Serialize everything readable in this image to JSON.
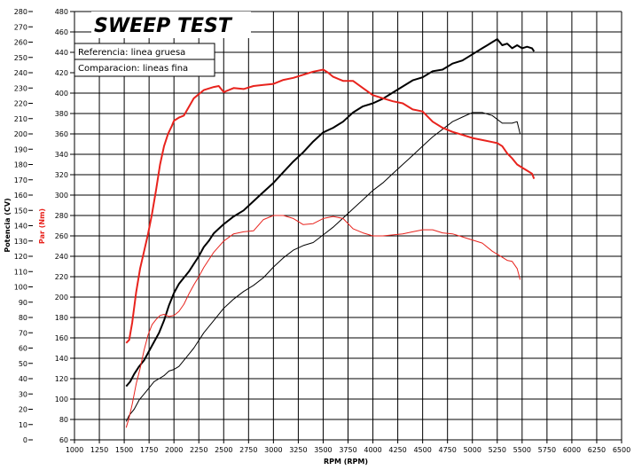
{
  "chart_data": {
    "type": "line",
    "title": "SWEEP TEST",
    "xlabel": "RPM (RPM)",
    "ylabel_left": "Potencia (CV)",
    "ylabel_right": "Par (Nm)",
    "xlim": [
      1000,
      6500
    ],
    "x_ticks": [
      1000,
      1250,
      1500,
      1750,
      2000,
      2250,
      2500,
      2750,
      3000,
      3250,
      3500,
      3750,
      4000,
      4250,
      4500,
      4750,
      5000,
      5250,
      5500,
      5750,
      6000,
      6250,
      6500
    ],
    "power_axis": {
      "ylim": [
        0,
        280
      ],
      "ticks": [
        0,
        10,
        20,
        30,
        40,
        50,
        60,
        70,
        80,
        90,
        100,
        110,
        120,
        130,
        140,
        150,
        160,
        170,
        180,
        190,
        200,
        210,
        220,
        230,
        240,
        250,
        260,
        270,
        280
      ]
    },
    "torque_axis": {
      "ylim": [
        60,
        480
      ],
      "ticks": [
        60,
        80,
        100,
        120,
        140,
        160,
        180,
        200,
        220,
        240,
        260,
        280,
        300,
        320,
        340,
        360,
        380,
        400,
        420,
        440,
        460,
        480
      ]
    },
    "legend": [
      "Referencia: linea gruesa",
      "Comparacion: lineas fina"
    ],
    "colors": {
      "power": "#000000",
      "torque": "#e8231d",
      "grid": "#000000"
    },
    "series": [
      {
        "name": "Potencia referencia",
        "axis": "power",
        "style": "thick",
        "color": "#000000",
        "x": [
          1520,
          1560,
          1600,
          1650,
          1700,
          1750,
          1800,
          1850,
          1900,
          1950,
          2000,
          2050,
          2100,
          2150,
          2200,
          2250,
          2300,
          2350,
          2400,
          2450,
          2500,
          2600,
          2700,
          2800,
          2900,
          3000,
          3100,
          3200,
          3300,
          3400,
          3500,
          3600,
          3700,
          3800,
          3900,
          4000,
          4100,
          4200,
          4300,
          4400,
          4500,
          4600,
          4700,
          4800,
          4900,
          5000,
          5100,
          5150,
          5200,
          5250,
          5300,
          5350,
          5400,
          5450,
          5500,
          5550,
          5600,
          5620
        ],
        "y": [
          35,
          38,
          43,
          48,
          52,
          58,
          64,
          70,
          78,
          88,
          96,
          102,
          106,
          110,
          115,
          120,
          126,
          130,
          135,
          138,
          141,
          146,
          150,
          156,
          162,
          168,
          175,
          182,
          188,
          195,
          201,
          204,
          208,
          214,
          218,
          220,
          223,
          227,
          231,
          235,
          237,
          241,
          242,
          246,
          248,
          252,
          256,
          258,
          260,
          262,
          258,
          259,
          256,
          258,
          256,
          257,
          256,
          254
        ]
      },
      {
        "name": "Potencia comparacion",
        "axis": "power",
        "style": "thin",
        "color": "#000000",
        "x": [
          1520,
          1550,
          1600,
          1650,
          1700,
          1750,
          1800,
          1850,
          1900,
          1950,
          2000,
          2050,
          2100,
          2150,
          2200,
          2250,
          2300,
          2400,
          2500,
          2600,
          2700,
          2800,
          2900,
          3000,
          3100,
          3200,
          3300,
          3400,
          3500,
          3600,
          3700,
          3800,
          3900,
          4000,
          4100,
          4200,
          4300,
          4400,
          4500,
          4600,
          4700,
          4800,
          4900,
          5000,
          5100,
          5200,
          5300,
          5400,
          5450,
          5480
        ],
        "y": [
          12,
          16,
          20,
          26,
          30,
          34,
          38,
          40,
          42,
          45,
          46,
          48,
          52,
          56,
          60,
          65,
          70,
          78,
          86,
          92,
          97,
          101,
          106,
          113,
          119,
          124,
          127,
          129,
          134,
          139,
          145,
          151,
          157,
          163,
          168,
          174,
          180,
          186,
          192,
          198,
          203,
          208,
          211,
          214,
          214,
          212,
          207,
          207,
          208,
          200
        ]
      },
      {
        "name": "Par referencia",
        "axis": "torque",
        "style": "thick",
        "color": "#e8231d",
        "x": [
          1520,
          1550,
          1580,
          1620,
          1660,
          1700,
          1740,
          1780,
          1820,
          1860,
          1900,
          1940,
          1980,
          2000,
          2050,
          2100,
          2200,
          2300,
          2400,
          2450,
          2500,
          2600,
          2700,
          2800,
          2900,
          3000,
          3100,
          3200,
          3300,
          3400,
          3450,
          3500,
          3550,
          3600,
          3700,
          3800,
          3900,
          4000,
          4100,
          4200,
          4300,
          4400,
          4500,
          4600,
          4700,
          4800,
          4900,
          5000,
          5100,
          5200,
          5250,
          5300,
          5350,
          5400,
          5450,
          5500,
          5550,
          5600,
          5620
        ],
        "y": [
          155,
          158,
          175,
          205,
          228,
          245,
          262,
          282,
          305,
          330,
          348,
          360,
          368,
          373,
          376,
          378,
          395,
          403,
          406,
          407,
          401,
          405,
          404,
          407,
          408,
          409,
          413,
          415,
          418,
          421,
          422,
          423,
          420,
          416,
          412,
          412,
          405,
          398,
          395,
          392,
          390,
          384,
          382,
          372,
          366,
          362,
          359,
          356,
          354,
          352,
          351,
          348,
          341,
          336,
          330,
          327,
          324,
          321,
          316
        ]
      },
      {
        "name": "Par comparacion",
        "axis": "torque",
        "style": "thin",
        "color": "#e8231d",
        "x": [
          1520,
          1550,
          1580,
          1620,
          1660,
          1700,
          1740,
          1780,
          1820,
          1860,
          1900,
          1950,
          2000,
          2050,
          2100,
          2150,
          2200,
          2250,
          2300,
          2400,
          2500,
          2600,
          2700,
          2800,
          2900,
          3000,
          3100,
          3200,
          3300,
          3400,
          3500,
          3600,
          3700,
          3800,
          3900,
          4000,
          4100,
          4200,
          4300,
          4400,
          4500,
          4600,
          4700,
          4800,
          4900,
          5000,
          5100,
          5200,
          5300,
          5350,
          5400,
          5450,
          5480
        ],
        "y": [
          72,
          82,
          95,
          115,
          130,
          148,
          163,
          173,
          178,
          182,
          183,
          181,
          182,
          186,
          193,
          203,
          212,
          220,
          229,
          244,
          255,
          262,
          264,
          265,
          276,
          280,
          280,
          277,
          271,
          272,
          277,
          279,
          277,
          267,
          263,
          260,
          260,
          261,
          262,
          264,
          266,
          266,
          263,
          262,
          259,
          256,
          253,
          245,
          239,
          236,
          235,
          228,
          217
        ]
      }
    ]
  }
}
